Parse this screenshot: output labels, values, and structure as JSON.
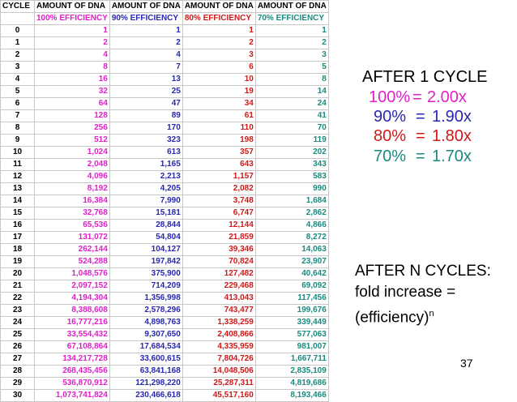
{
  "headers": {
    "cycle": "CYCLE",
    "amount": [
      "AMOUNT OF DNA",
      "AMOUNT OF DNA",
      "AMOUNT OF DNA",
      "AMOUNT OF DNA"
    ],
    "efficiency": [
      "100% EFFICIENCY",
      "90% EFFICIENCY",
      "80% EFFICIENCY",
      "70% EFFICIENCY"
    ]
  },
  "colors": {
    "e100": "#e020c8",
    "e90": "#2828b0",
    "e80": "#d01818",
    "e70": "#1a8a80"
  },
  "rows": [
    [
      "0",
      "1",
      "1",
      "1",
      "1"
    ],
    [
      "1",
      "2",
      "2",
      "2",
      "2"
    ],
    [
      "2",
      "4",
      "4",
      "3",
      "3"
    ],
    [
      "3",
      "8",
      "7",
      "6",
      "5"
    ],
    [
      "4",
      "16",
      "13",
      "10",
      "8"
    ],
    [
      "5",
      "32",
      "25",
      "19",
      "14"
    ],
    [
      "6",
      "64",
      "47",
      "34",
      "24"
    ],
    [
      "7",
      "128",
      "89",
      "61",
      "41"
    ],
    [
      "8",
      "256",
      "170",
      "110",
      "70"
    ],
    [
      "9",
      "512",
      "323",
      "198",
      "119"
    ],
    [
      "10",
      "1,024",
      "613",
      "357",
      "202"
    ],
    [
      "11",
      "2,048",
      "1,165",
      "643",
      "343"
    ],
    [
      "12",
      "4,096",
      "2,213",
      "1,157",
      "583"
    ],
    [
      "13",
      "8,192",
      "4,205",
      "2,082",
      "990"
    ],
    [
      "14",
      "16,384",
      "7,990",
      "3,748",
      "1,684"
    ],
    [
      "15",
      "32,768",
      "15,181",
      "6,747",
      "2,862"
    ],
    [
      "16",
      "65,536",
      "28,844",
      "12,144",
      "4,866"
    ],
    [
      "17",
      "131,072",
      "54,804",
      "21,859",
      "8,272"
    ],
    [
      "18",
      "262,144",
      "104,127",
      "39,346",
      "14,063"
    ],
    [
      "19",
      "524,288",
      "197,842",
      "70,824",
      "23,907"
    ],
    [
      "20",
      "1,048,576",
      "375,900",
      "127,482",
      "40,642"
    ],
    [
      "21",
      "2,097,152",
      "714,209",
      "229,468",
      "69,092"
    ],
    [
      "22",
      "4,194,304",
      "1,356,998",
      "413,043",
      "117,456"
    ],
    [
      "23",
      "8,388,608",
      "2,578,296",
      "743,477",
      "199,676"
    ],
    [
      "24",
      "16,777,216",
      "4,898,763",
      "1,338,259",
      "339,449"
    ],
    [
      "25",
      "33,554,432",
      "9,307,650",
      "2,408,866",
      "577,063"
    ],
    [
      "26",
      "67,108,864",
      "17,684,534",
      "4,335,959",
      "981,007"
    ],
    [
      "27",
      "134,217,728",
      "33,600,615",
      "7,804,726",
      "1,667,711"
    ],
    [
      "28",
      "268,435,456",
      "63,841,168",
      "14,048,506",
      "2,835,109"
    ],
    [
      "29",
      "536,870,912",
      "121,298,220",
      "25,287,311",
      "4,819,686"
    ],
    [
      "30",
      "1,073,741,824",
      "230,466,618",
      "45,517,160",
      "8,193,466"
    ]
  ],
  "after_one_cycle": {
    "title": "AFTER 1 CYCLE",
    "lines": [
      {
        "pct": "100%",
        "eq": "=",
        "val": "2.00x"
      },
      {
        "pct": "90%",
        "eq": "=",
        "val": "1.90x"
      },
      {
        "pct": "80%",
        "eq": "=",
        "val": "1.80x"
      },
      {
        "pct": "70%",
        "eq": "=",
        "val": "1.70x"
      }
    ]
  },
  "after_n_cycles": {
    "title": "AFTER N CYCLES:",
    "line1": "fold increase =",
    "line2": "(efficiency)",
    "superscript": "n"
  },
  "page_number": "37"
}
